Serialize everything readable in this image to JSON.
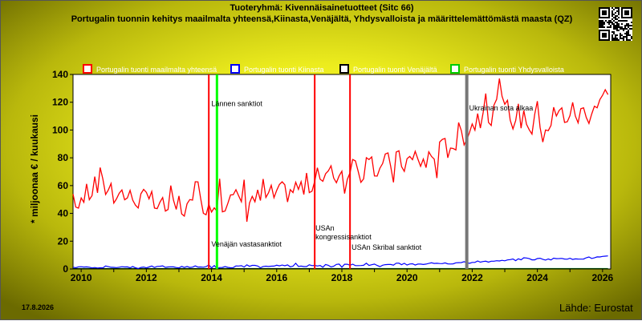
{
  "header": {
    "title": "Tuoteryhmä: Kivennäisainetuotteet (Sitc 66)",
    "subtitle": "Portugalin tuonnin kehitys maailmalta yhteensä,Kiinasta,Venäjältä, Yhdysvalloista ja määrittelemättömästä maasta (QZ)"
  },
  "footer": {
    "date": "17.8.2026",
    "source": "Lähde: Eurostat"
  },
  "colors": {
    "world": "#ff0000",
    "china": "#0000ff",
    "russia": "#000000",
    "usa": "#00cc00",
    "event_red": "#ff0000",
    "event_green": "#00ff00",
    "event_grey": "#777777",
    "plot_bg": "#ffffff"
  },
  "chart_data": {
    "type": "line",
    "ylabel": "* miljoonaa € / kuukausi",
    "xlabel": "",
    "ylim": [
      0,
      140
    ],
    "xlim": [
      "2009-10",
      "2026-04"
    ],
    "y_ticks": [
      0,
      20,
      40,
      60,
      80,
      100,
      120,
      140
    ],
    "x_ticks": [
      "2010",
      "2012",
      "2014",
      "2016",
      "2018",
      "2020",
      "2022",
      "2024",
      "2026"
    ],
    "grid": false,
    "legend_position": "top",
    "series": [
      {
        "name": "Portugalin tuonti maailmalta yhteensä",
        "color": "#ff0000",
        "anchors": [
          [
            "2009-10",
            47
          ],
          [
            "2010-06",
            58
          ],
          [
            "2011-01",
            60
          ],
          [
            "2011-06",
            52
          ],
          [
            "2012-01",
            50
          ],
          [
            "2012-06",
            45
          ],
          [
            "2013-01",
            44
          ],
          [
            "2013-06",
            45
          ],
          [
            "2014-01",
            48
          ],
          [
            "2014-06",
            49
          ],
          [
            "2015-01",
            52
          ],
          [
            "2015-06",
            51
          ],
          [
            "2016-01",
            54
          ],
          [
            "2016-06",
            57
          ],
          [
            "2017-01",
            62
          ],
          [
            "2017-06",
            66
          ],
          [
            "2018-01",
            70
          ],
          [
            "2018-06",
            70
          ],
          [
            "2019-01",
            72
          ],
          [
            "2019-06",
            76
          ],
          [
            "2020-01",
            78
          ],
          [
            "2020-06",
            78
          ],
          [
            "2021-01",
            84
          ],
          [
            "2021-06",
            93
          ],
          [
            "2022-01",
            105
          ],
          [
            "2022-06",
            116
          ],
          [
            "2023-01",
            114
          ],
          [
            "2023-06",
            110
          ],
          [
            "2024-01",
            112
          ],
          [
            "2024-06",
            110
          ],
          [
            "2025-01",
            113
          ],
          [
            "2025-06",
            112
          ],
          [
            "2026-01",
            125
          ],
          [
            "2026-03",
            122
          ]
        ]
      },
      {
        "name": "Portugalin tuonti Kiinasta",
        "color": "#0000ff",
        "anchors": [
          [
            "2009-10",
            1.5
          ],
          [
            "2012-01",
            1.5
          ],
          [
            "2015-01",
            1.8
          ],
          [
            "2017-01",
            2.5
          ],
          [
            "2018-06",
            3
          ],
          [
            "2020-01",
            3.5
          ],
          [
            "2021-06",
            4
          ],
          [
            "2022-06",
            5.5
          ],
          [
            "2023-06",
            7.5
          ],
          [
            "2024-06",
            7
          ],
          [
            "2025-06",
            7.5
          ],
          [
            "2026-03",
            9
          ]
        ]
      },
      {
        "name": "Portugalin tuonti Venäjältä",
        "color": "#000000",
        "anchors": [
          [
            "2009-10",
            0.2
          ],
          [
            "2026-03",
            0.1
          ]
        ]
      },
      {
        "name": "Portugalin tuonti Yhdysvalloista",
        "color": "#00cc00",
        "anchors": [
          [
            "2009-10",
            0.3
          ],
          [
            "2026-03",
            0.3
          ]
        ]
      }
    ],
    "events": [
      {
        "date": "2013-12",
        "color": "#ff0000",
        "label": ""
      },
      {
        "date": "2014-03",
        "color": "#00ff00",
        "label": ""
      },
      {
        "date": "2017-03",
        "color": "#ff0000",
        "label": "USAn kongressisanktiot"
      },
      {
        "date": "2018-04",
        "color": "#ff0000",
        "label": "USAn Skribal sanktiot"
      },
      {
        "date": "2021-11",
        "color": "#777777",
        "label": "Ukrainan sota alkaa"
      }
    ],
    "annotations": [
      {
        "text": "Lännen sanktiot",
        "date": "2014-03",
        "y": 119
      },
      {
        "text": "Venäjän vastasanktiot",
        "date": "2014-03",
        "y": 18
      }
    ]
  }
}
